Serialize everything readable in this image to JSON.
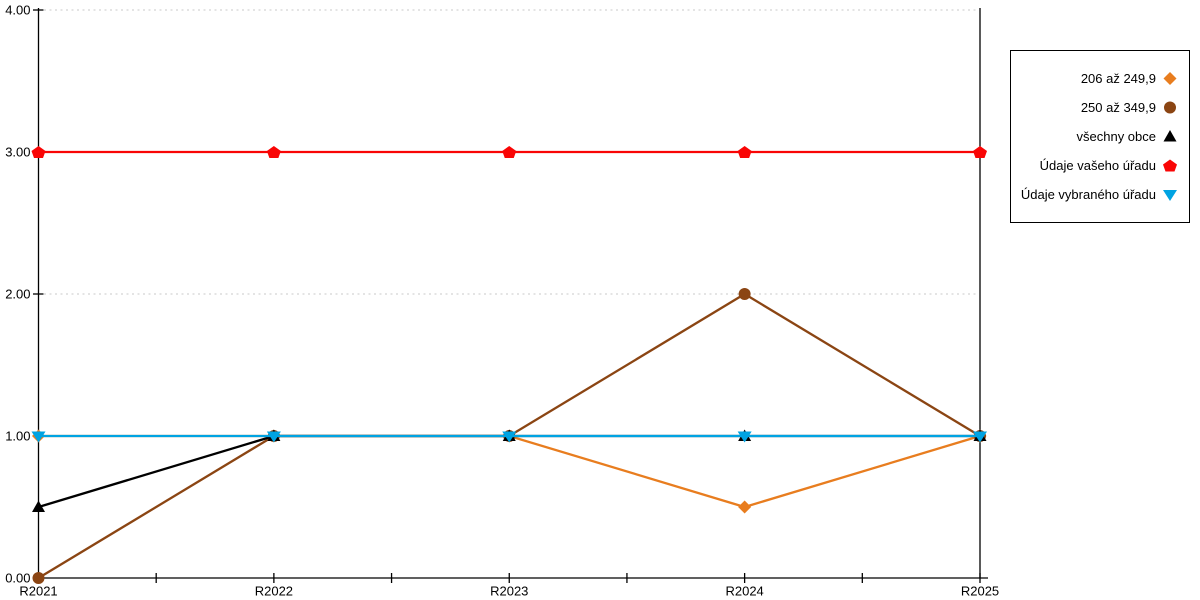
{
  "chart_data": {
    "type": "line",
    "categories": [
      "R2021",
      "R2022",
      "R2023",
      "R2024",
      "R2025"
    ],
    "series": [
      {
        "name": "206 až 249,9",
        "marker": "diamond",
        "color": "#E87D1F",
        "values": [
          1,
          1,
          1,
          0.5,
          1
        ]
      },
      {
        "name": "250 až 349,9",
        "marker": "circle",
        "color": "#8B4513",
        "values": [
          0,
          1,
          1,
          2,
          1
        ]
      },
      {
        "name": "všechny obce",
        "marker": "triangle-up",
        "color": "#000000",
        "values": [
          0.5,
          1,
          1,
          1,
          1
        ]
      },
      {
        "name": "Údaje vašeho úřadu",
        "marker": "pentagon",
        "color": "#F90505",
        "values": [
          3,
          3,
          3,
          3,
          3
        ]
      },
      {
        "name": "Údaje vybraného úřadu",
        "marker": "triangle-down",
        "color": "#00A3E2",
        "values": [
          1,
          1,
          1,
          1,
          1
        ]
      }
    ],
    "ylim": [
      0,
      4
    ],
    "yticks": [
      {
        "value": 0,
        "label": "0.00"
      },
      {
        "value": 1,
        "label": "1.00"
      },
      {
        "value": 2,
        "label": "2.00"
      },
      {
        "value": 3,
        "label": "3.00"
      },
      {
        "value": 4,
        "label": "4.00"
      }
    ],
    "grid": {
      "horizontal": true,
      "style": "dotted",
      "color": "#C9C9C9"
    },
    "legend_position": "right"
  },
  "colors": {
    "background": "#FFFFFF",
    "axis": "#000000",
    "legend_border": "#000000",
    "text": "#000000"
  }
}
